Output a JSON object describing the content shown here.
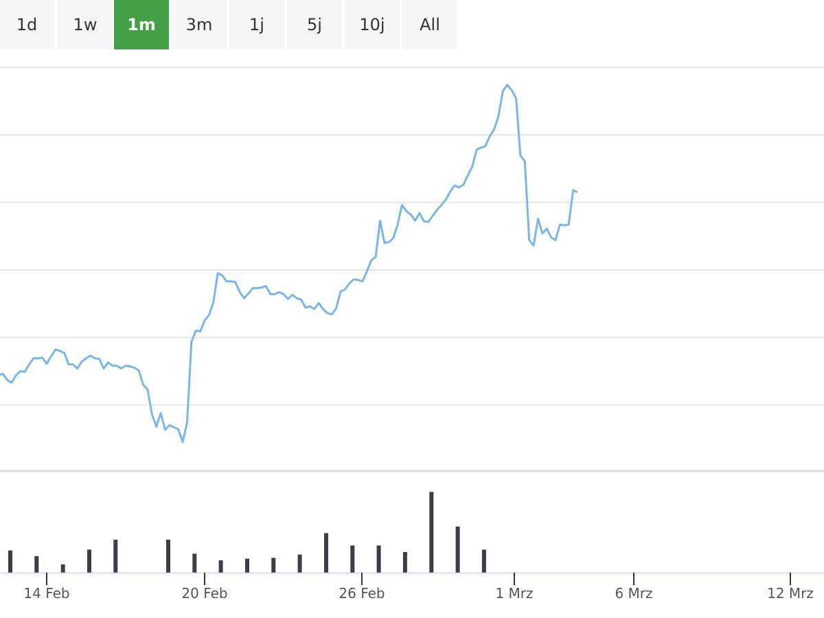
{
  "range_tabs": [
    {
      "label": "1d",
      "active": false
    },
    {
      "label": "1w",
      "active": false
    },
    {
      "label": "1m",
      "active": true
    },
    {
      "label": "3m",
      "active": false
    },
    {
      "label": "1j",
      "active": false
    },
    {
      "label": "5j",
      "active": false
    },
    {
      "label": "10j",
      "active": false
    },
    {
      "label": "All",
      "active": false
    }
  ],
  "colors": {
    "active_tab": "#43a047",
    "tab_background": "#f6f6f7",
    "price_line": "#7cb5ec",
    "volume_bar": "#3d3d45",
    "grid": "#e6e6e6"
  },
  "chart_data": [
    {
      "type": "line",
      "title": "",
      "xlabel": "",
      "ylabel": "",
      "grid": true,
      "x_axis": "date",
      "x_tick_labels": [
        "14 Feb",
        "20 Feb",
        "26 Feb",
        "1 Mrz",
        "6 Mrz",
        "12 Mrz"
      ],
      "x_range": [
        "2020-02-12",
        "2020-03-13"
      ],
      "y_range": [
        0,
        6
      ],
      "y_tick_labels": [],
      "series": [
        {
          "values": [
            [
              "2020-02-12T00:00",
              1.5
            ],
            [
              "2020-02-12T04:00",
              1.44
            ],
            [
              "2020-02-12T08:00",
              1.46
            ],
            [
              "2020-02-12T12:00",
              1.37
            ],
            [
              "2020-02-12T16:00",
              1.33
            ],
            [
              "2020-02-12T20:00",
              1.44
            ],
            [
              "2020-02-13T00:00",
              1.5
            ],
            [
              "2020-02-13T04:00",
              1.49
            ],
            [
              "2020-02-13T08:00",
              1.6
            ],
            [
              "2020-02-13T12:00",
              1.69
            ],
            [
              "2020-02-13T16:00",
              1.69
            ],
            [
              "2020-02-13T20:00",
              1.7
            ],
            [
              "2020-02-14T00:00",
              1.61
            ],
            [
              "2020-02-14T04:00",
              1.72
            ],
            [
              "2020-02-14T08:00",
              1.82
            ],
            [
              "2020-02-14T12:00",
              1.8
            ],
            [
              "2020-02-14T16:00",
              1.77
            ],
            [
              "2020-02-14T20:00",
              1.6
            ],
            [
              "2020-02-15T00:00",
              1.6
            ],
            [
              "2020-02-15T04:00",
              1.54
            ],
            [
              "2020-02-15T08:00",
              1.64
            ],
            [
              "2020-02-15T12:00",
              1.69
            ],
            [
              "2020-02-15T16:00",
              1.73
            ],
            [
              "2020-02-15T20:00",
              1.69
            ],
            [
              "2020-02-16T00:00",
              1.68
            ],
            [
              "2020-02-16T04:00",
              1.54
            ],
            [
              "2020-02-16T08:00",
              1.63
            ],
            [
              "2020-02-16T12:00",
              1.58
            ],
            [
              "2020-02-16T16:00",
              1.58
            ],
            [
              "2020-02-16T20:00",
              1.54
            ],
            [
              "2020-02-17T00:00",
              1.58
            ],
            [
              "2020-02-17T04:00",
              1.57
            ],
            [
              "2020-02-17T08:00",
              1.55
            ],
            [
              "2020-02-17T12:00",
              1.51
            ],
            [
              "2020-02-17T16:00",
              1.3
            ],
            [
              "2020-02-17T20:00",
              1.23
            ],
            [
              "2020-02-18T00:00",
              0.86
            ],
            [
              "2020-02-18T04:00",
              0.68
            ],
            [
              "2020-02-18T08:00",
              0.88
            ],
            [
              "2020-02-18T12:00",
              0.63
            ],
            [
              "2020-02-18T16:00",
              0.7
            ],
            [
              "2020-02-18T20:00",
              0.67
            ],
            [
              "2020-02-19T00:00",
              0.64
            ],
            [
              "2020-02-19T04:00",
              0.45
            ],
            [
              "2020-02-19T08:00",
              0.73
            ],
            [
              "2020-02-19T12:00",
              1.93
            ],
            [
              "2020-02-19T16:00",
              2.1
            ],
            [
              "2020-02-19T20:00",
              2.09
            ],
            [
              "2020-02-20T00:00",
              2.25
            ],
            [
              "2020-02-20T04:00",
              2.33
            ],
            [
              "2020-02-20T08:00",
              2.52
            ],
            [
              "2020-02-20T12:00",
              2.95
            ],
            [
              "2020-02-20T16:00",
              2.92
            ],
            [
              "2020-02-20T20:00",
              2.83
            ],
            [
              "2020-02-21T00:00",
              2.83
            ],
            [
              "2020-02-21T04:00",
              2.82
            ],
            [
              "2020-02-21T08:00",
              2.67
            ],
            [
              "2020-02-21T12:00",
              2.58
            ],
            [
              "2020-02-21T16:00",
              2.65
            ],
            [
              "2020-02-21T20:00",
              2.73
            ],
            [
              "2020-02-22T00:00",
              2.73
            ],
            [
              "2020-02-22T04:00",
              2.74
            ],
            [
              "2020-02-22T08:00",
              2.76
            ],
            [
              "2020-02-22T12:00",
              2.64
            ],
            [
              "2020-02-22T16:00",
              2.64
            ],
            [
              "2020-02-22T20:00",
              2.67
            ],
            [
              "2020-02-23T00:00",
              2.64
            ],
            [
              "2020-02-23T04:00",
              2.57
            ],
            [
              "2020-02-23T08:00",
              2.63
            ],
            [
              "2020-02-23T12:00",
              2.58
            ],
            [
              "2020-02-23T16:00",
              2.56
            ],
            [
              "2020-02-23T20:00",
              2.44
            ],
            [
              "2020-02-24T00:00",
              2.46
            ],
            [
              "2020-02-24T04:00",
              2.42
            ],
            [
              "2020-02-24T08:00",
              2.51
            ],
            [
              "2020-02-24T12:00",
              2.42
            ],
            [
              "2020-02-24T16:00",
              2.36
            ],
            [
              "2020-02-24T20:00",
              2.34
            ],
            [
              "2020-02-25T00:00",
              2.43
            ],
            [
              "2020-02-25T04:00",
              2.68
            ],
            [
              "2020-02-25T08:00",
              2.71
            ],
            [
              "2020-02-25T12:00",
              2.8
            ],
            [
              "2020-02-25T16:00",
              2.86
            ],
            [
              "2020-02-25T20:00",
              2.85
            ],
            [
              "2020-02-26T00:00",
              2.83
            ],
            [
              "2020-02-26T04:00",
              2.98
            ],
            [
              "2020-02-26T08:00",
              3.14
            ],
            [
              "2020-02-26T12:00",
              3.19
            ],
            [
              "2020-02-26T16:00",
              3.73
            ],
            [
              "2020-02-26T20:00",
              3.4
            ],
            [
              "2020-02-27T00:00",
              3.41
            ],
            [
              "2020-02-27T04:00",
              3.47
            ],
            [
              "2020-02-27T08:00",
              3.67
            ],
            [
              "2020-02-27T12:00",
              3.96
            ],
            [
              "2020-02-27T16:00",
              3.87
            ],
            [
              "2020-02-27T20:00",
              3.82
            ],
            [
              "2020-02-28T00:00",
              3.73
            ],
            [
              "2020-02-28T04:00",
              3.84
            ],
            [
              "2020-02-28T08:00",
              3.72
            ],
            [
              "2020-02-28T12:00",
              3.71
            ],
            [
              "2020-02-28T16:00",
              3.8
            ],
            [
              "2020-02-28T20:00",
              3.89
            ],
            [
              "2020-02-29T00:00",
              3.96
            ],
            [
              "2020-02-29T04:00",
              4.04
            ],
            [
              "2020-02-29T08:00",
              4.16
            ],
            [
              "2020-02-29T12:00",
              4.25
            ],
            [
              "2020-02-29T16:00",
              4.22
            ],
            [
              "2020-02-29T20:00",
              4.26
            ],
            [
              "2020-03-01T00:00",
              4.4
            ],
            [
              "2020-03-01T04:00",
              4.53
            ],
            [
              "2020-03-01T08:00",
              4.78
            ],
            [
              "2020-03-01T12:00",
              4.81
            ],
            [
              "2020-03-01T16:00",
              4.83
            ],
            [
              "2020-03-01T20:00",
              4.98
            ],
            [
              "2020-03-02T00:00",
              5.08
            ],
            [
              "2020-03-02T04:00",
              5.28
            ],
            [
              "2020-03-02T08:00",
              5.65
            ],
            [
              "2020-03-02T12:00",
              5.74
            ],
            [
              "2020-03-02T16:00",
              5.66
            ],
            [
              "2020-03-02T20:00",
              5.54
            ],
            [
              "2020-03-03T00:00",
              4.69
            ],
            [
              "2020-03-03T04:00",
              4.61
            ],
            [
              "2020-03-03T08:00",
              3.44
            ],
            [
              "2020-03-03T12:00",
              3.36
            ],
            [
              "2020-03-03T16:00",
              3.76
            ],
            [
              "2020-03-03T20:00",
              3.54
            ],
            [
              "2020-03-04T00:00",
              3.61
            ],
            [
              "2020-03-04T04:00",
              3.48
            ],
            [
              "2020-03-04T08:00",
              3.44
            ],
            [
              "2020-03-04T12:00",
              3.67
            ],
            [
              "2020-03-04T16:00",
              3.66
            ],
            [
              "2020-03-04T20:00",
              3.67
            ],
            [
              "2020-03-05T00:00",
              4.18
            ],
            [
              "2020-03-05T04:00",
              4.15
            ]
          ]
        }
      ]
    },
    {
      "type": "bar",
      "title": "",
      "xlabel": "",
      "ylabel": "",
      "ylim": [
        0,
        1
      ],
      "bars": [
        [
          "2020-02-12",
          0.32
        ],
        [
          "2020-02-13",
          0.25
        ],
        [
          "2020-02-14",
          0.27
        ],
        [
          "2020-02-15",
          0.2
        ],
        [
          "2020-02-16",
          0.1
        ],
        [
          "2020-02-17",
          0.28
        ],
        [
          "2020-02-18",
          0.4
        ],
        [
          "2020-02-20",
          0.4
        ],
        [
          "2020-02-21",
          0.23
        ],
        [
          "2020-02-22",
          0.15
        ],
        [
          "2020-02-23",
          0.17
        ],
        [
          "2020-02-24",
          0.18
        ],
        [
          "2020-02-25",
          0.22
        ],
        [
          "2020-02-26",
          0.48
        ],
        [
          "2020-02-27",
          0.33
        ],
        [
          "2020-02-28",
          0.33
        ],
        [
          "2020-02-29",
          0.25
        ],
        [
          "2020-03-01",
          0.98
        ],
        [
          "2020-03-02",
          0.56
        ],
        [
          "2020-03-03",
          0.28
        ]
      ]
    }
  ]
}
